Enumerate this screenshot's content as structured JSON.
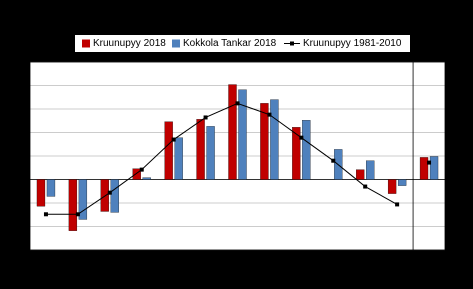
{
  "chart_data": {
    "type": "bar",
    "categories": [
      null,
      null,
      null,
      null,
      null,
      null,
      null,
      null,
      null,
      null,
      null,
      null,
      null
    ],
    "series": [
      {
        "name": "Kruunupyy 2018",
        "color": "#c00000",
        "kind": "bar",
        "values": [
          -5.7,
          -10.9,
          -6.8,
          2.3,
          12.3,
          12.8,
          20.2,
          16.2,
          11.1,
          0,
          2.1,
          -3.0,
          4.7
        ]
      },
      {
        "name": "Kokkola Tankar 2018",
        "color": "#4f81bd",
        "kind": "bar",
        "values": [
          -3.6,
          -8.5,
          -7.0,
          0.4,
          8.9,
          11.3,
          19.1,
          17.0,
          12.6,
          6.4,
          4.0,
          -1.3,
          4.9
        ]
      },
      {
        "name": "Kruunupyy 1981-2010",
        "color": "#000000",
        "kind": "line",
        "values": [
          -7.4,
          -7.4,
          -2.8,
          2.1,
          8.5,
          13.2,
          16.2,
          13.8,
          8.9,
          4.0,
          -1.5,
          -5.3,
          3.6
        ]
      }
    ],
    "separator_after": 12,
    "ylim": [
      -15,
      25
    ],
    "yticks": [
      -15,
      -10,
      -5,
      0,
      5,
      10,
      15,
      20,
      25
    ],
    "grid": true
  }
}
